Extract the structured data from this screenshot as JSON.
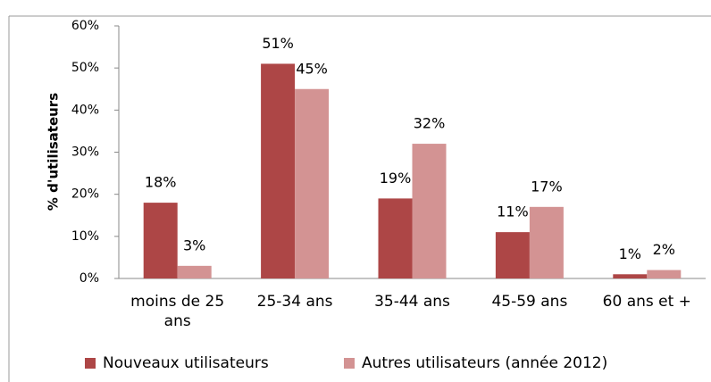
{
  "chart_data": {
    "type": "bar",
    "ylabel": "% d'utilisateurs",
    "categories": [
      "moins de 25 ans",
      "25-34 ans",
      "35-44 ans",
      "45-59 ans",
      "60 ans et +"
    ],
    "series": [
      {
        "name": "Nouveaux utilisateurs",
        "color": "#ad4646",
        "values": [
          18,
          51,
          19,
          11,
          1
        ],
        "value_labels": [
          "18%",
          "51%",
          "19%",
          "11%",
          "1%"
        ]
      },
      {
        "name": "Autres utilisateurs (année 2012)",
        "color": "#d39393",
        "values": [
          3,
          45,
          32,
          17,
          2
        ],
        "value_labels": [
          "3%",
          "45%",
          "32%",
          "17%",
          "2%"
        ]
      }
    ],
    "ylim": [
      0,
      60
    ],
    "yticks": [
      {
        "value": 0,
        "label": "0%"
      },
      {
        "value": 10,
        "label": "10%"
      },
      {
        "value": 20,
        "label": "20%"
      },
      {
        "value": 30,
        "label": "30%"
      },
      {
        "value": 40,
        "label": "40%"
      },
      {
        "value": 50,
        "label": "50%"
      },
      {
        "value": 60,
        "label": "60%"
      }
    ],
    "grid": false,
    "legend": "bottom"
  }
}
